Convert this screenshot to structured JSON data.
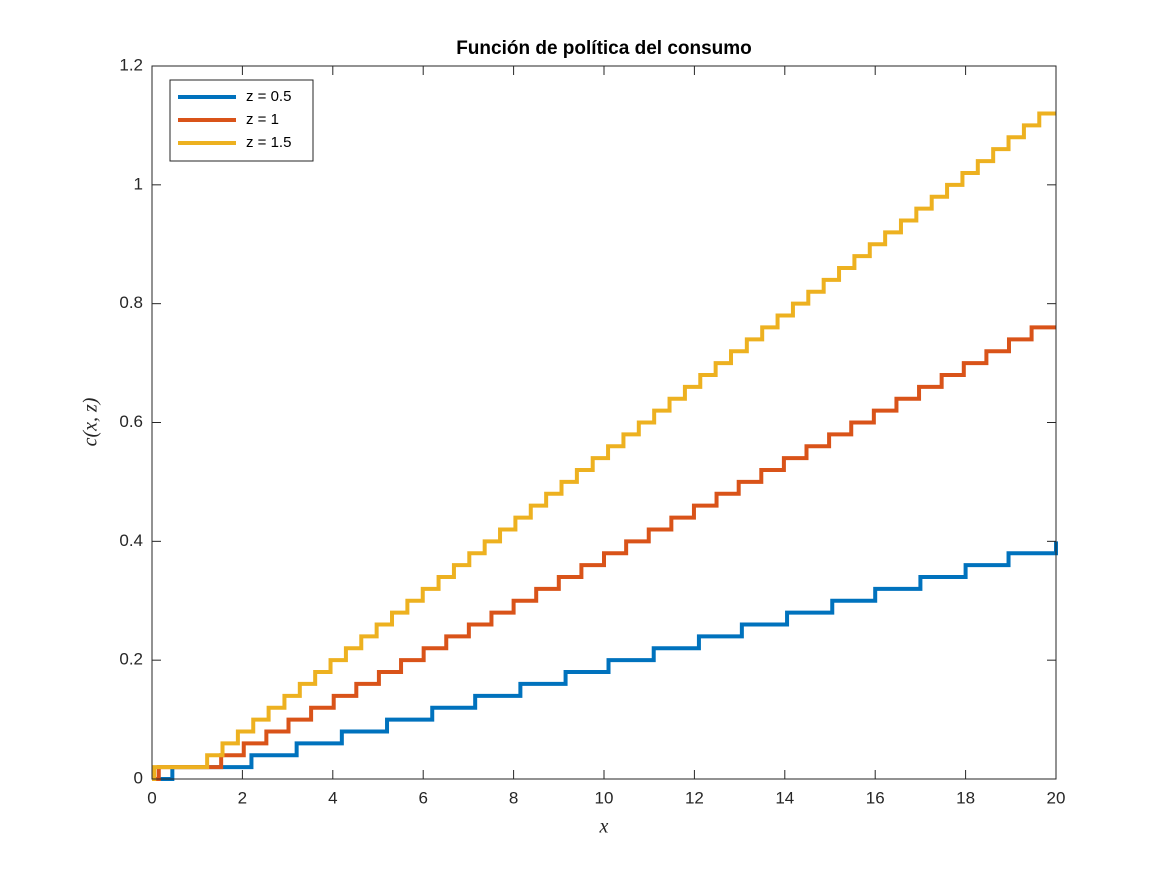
{
  "chart_data": {
    "type": "line",
    "step": "post",
    "title": "Función de política del consumo",
    "x_label": "x",
    "y_label": "c(x, z)",
    "xlim": [
      0,
      20
    ],
    "ylim": [
      0,
      1.2
    ],
    "xticks": [
      0,
      2,
      4,
      6,
      8,
      10,
      12,
      14,
      16,
      18,
      20
    ],
    "yticks": [
      0,
      0.2,
      0.4,
      0.6,
      0.8,
      1,
      1.2
    ],
    "legend": "upper left",
    "grid": false,
    "series": [
      {
        "name": "z = 0.5",
        "color": "#0072bd",
        "x": [
          0,
          0.45,
          2.2,
          3.2,
          4.2,
          5.2,
          6.2,
          7.15,
          8.15,
          9.15,
          10.1,
          11.1,
          12.1,
          13.05,
          14.05,
          15.05,
          16.0,
          17.0,
          18.0,
          18.95,
          20
        ],
        "values": [
          0,
          0.02,
          0.04,
          0.06,
          0.08,
          0.1,
          0.12,
          0.14,
          0.16,
          0.18,
          0.2,
          0.22,
          0.24,
          0.26,
          0.28,
          0.3,
          0.32,
          0.34,
          0.36,
          0.38,
          0.4
        ]
      },
      {
        "name": "z = 1",
        "color": "#d95319",
        "x": [
          0,
          0.15,
          1.53,
          2.03,
          2.53,
          3.02,
          3.52,
          4.02,
          4.52,
          5.02,
          5.51,
          6.01,
          6.51,
          7.01,
          7.51,
          8.0,
          8.5,
          9.0,
          9.5,
          10.0,
          10.49,
          10.99,
          11.49,
          11.99,
          12.49,
          12.98,
          13.48,
          13.98,
          14.48,
          14.98,
          15.47,
          15.97,
          16.47,
          16.97,
          17.47,
          17.96,
          18.46,
          18.96,
          19.46,
          20
        ],
        "values": [
          0,
          0.02,
          0.04,
          0.06,
          0.08,
          0.1,
          0.12,
          0.14,
          0.16,
          0.18,
          0.2,
          0.22,
          0.24,
          0.26,
          0.28,
          0.3,
          0.32,
          0.34,
          0.36,
          0.38,
          0.4,
          0.42,
          0.44,
          0.46,
          0.48,
          0.5,
          0.52,
          0.54,
          0.56,
          0.58,
          0.6,
          0.62,
          0.64,
          0.66,
          0.68,
          0.7,
          0.72,
          0.74,
          0.76,
          0.76
        ]
      },
      {
        "name": "z = 1.5",
        "color": "#edb120",
        "x": [
          0,
          0.05,
          1.22,
          1.56,
          1.9,
          2.24,
          2.58,
          2.93,
          3.27,
          3.61,
          3.95,
          4.29,
          4.63,
          4.97,
          5.31,
          5.65,
          5.99,
          6.34,
          6.68,
          7.02,
          7.36,
          7.7,
          8.04,
          8.38,
          8.72,
          9.06,
          9.4,
          9.75,
          10.09,
          10.43,
          10.77,
          11.11,
          11.45,
          11.79,
          12.13,
          12.47,
          12.81,
          13.16,
          13.5,
          13.84,
          14.18,
          14.52,
          14.86,
          15.2,
          15.54,
          15.88,
          16.22,
          16.57,
          16.91,
          17.25,
          17.59,
          17.93,
          18.27,
          18.61,
          18.95,
          19.29,
          19.63,
          20
        ],
        "values": [
          0,
          0.02,
          0.04,
          0.06,
          0.08,
          0.1,
          0.12,
          0.14,
          0.16,
          0.18,
          0.2,
          0.22,
          0.24,
          0.26,
          0.28,
          0.3,
          0.32,
          0.34,
          0.36,
          0.38,
          0.4,
          0.42,
          0.44,
          0.46,
          0.48,
          0.5,
          0.52,
          0.54,
          0.56,
          0.58,
          0.6,
          0.62,
          0.64,
          0.66,
          0.68,
          0.7,
          0.72,
          0.74,
          0.76,
          0.78,
          0.8,
          0.82,
          0.84,
          0.86,
          0.88,
          0.9,
          0.92,
          0.94,
          0.96,
          0.98,
          1,
          1.02,
          1.04,
          1.06,
          1.08,
          1.1,
          1.12,
          1.12
        ]
      }
    ]
  }
}
